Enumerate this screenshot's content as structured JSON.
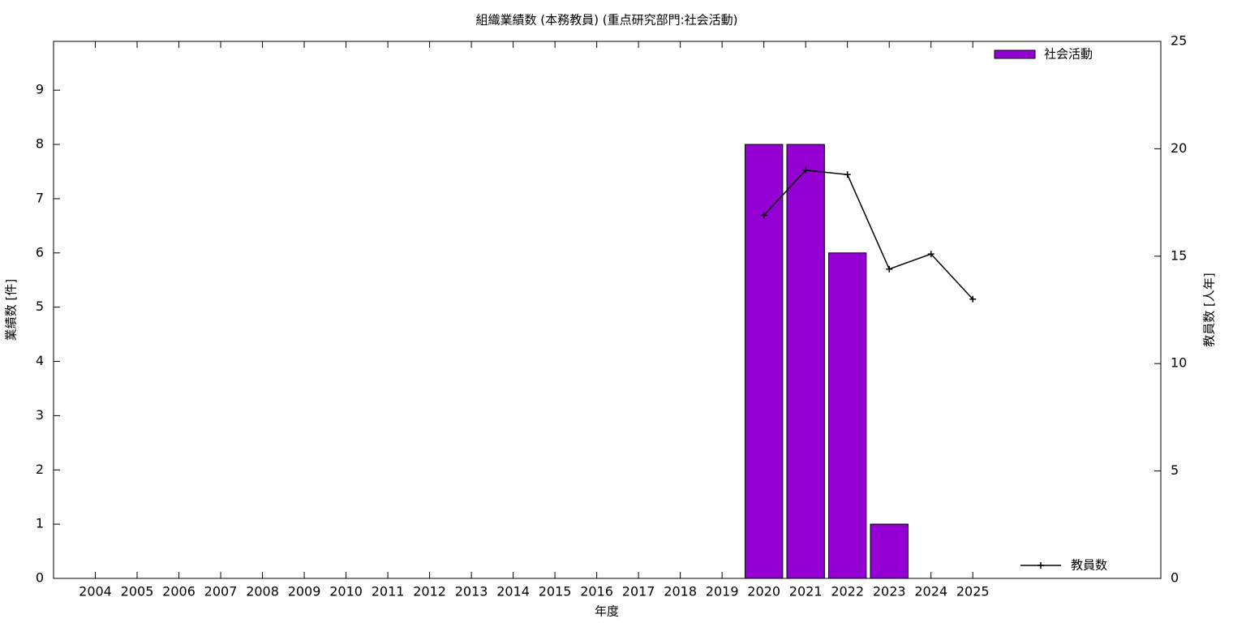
{
  "chart_data": {
    "type": "bar",
    "title": "組織業績数 (本務教員) (重点研究部門:社会活動)",
    "x_label": "年度",
    "y_label": "業績数 [件]",
    "y2_label": "教員数 [人年]",
    "x": [
      2004,
      2005,
      2006,
      2007,
      2008,
      2009,
      2010,
      2011,
      2012,
      2013,
      2014,
      2015,
      2016,
      2017,
      2018,
      2019,
      2020,
      2021,
      2022,
      2023,
      2024,
      2025
    ],
    "xlim": [
      2003,
      2029.5
    ],
    "xticks": [
      2004,
      2005,
      2006,
      2007,
      2008,
      2009,
      2010,
      2011,
      2012,
      2013,
      2014,
      2015,
      2016,
      2017,
      2018,
      2019,
      2020,
      2021,
      2022,
      2023,
      2024,
      2025
    ],
    "ylim": [
      0,
      9.9
    ],
    "yticks": [
      0,
      1,
      2,
      3,
      4,
      5,
      6,
      7,
      8,
      9
    ],
    "y2lim": [
      0,
      25
    ],
    "y2ticks": [
      0,
      5,
      10,
      15,
      20,
      25
    ],
    "series": [
      {
        "name": "社会活動",
        "type": "bar",
        "color": "#9400d3",
        "legend": "top-right",
        "values": [
          0,
          0,
          0,
          0,
          0,
          0,
          0,
          0,
          0,
          0,
          0,
          0,
          0,
          0,
          0,
          0,
          8,
          8,
          6,
          1,
          0,
          0
        ]
      },
      {
        "name": "教員数",
        "type": "line",
        "color": "#000000",
        "axis": "y2",
        "legend": "bottom-right",
        "values": [
          null,
          null,
          null,
          null,
          null,
          null,
          null,
          null,
          null,
          null,
          null,
          null,
          null,
          null,
          null,
          null,
          16.9,
          19.0,
          18.8,
          14.4,
          15.1,
          13.0
        ]
      }
    ]
  }
}
